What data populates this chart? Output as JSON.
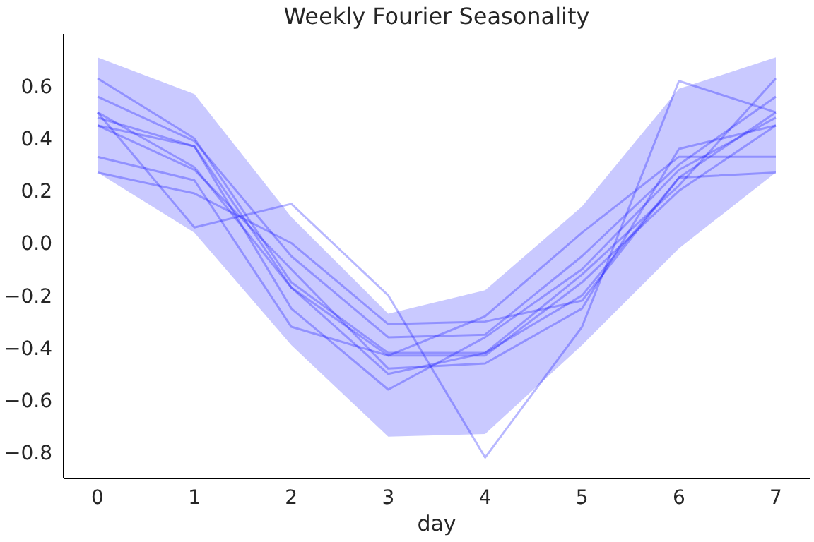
{
  "chart_data": {
    "type": "line",
    "title": "Weekly Fourier Seasonality",
    "xlabel": "day",
    "x": [
      0,
      1,
      2,
      3,
      4,
      5,
      6,
      7
    ],
    "series": [
      {
        "color": "#0000ff",
        "values": [
          0.63,
          0.4,
          -0.15,
          -0.42,
          -0.42,
          -0.12,
          0.22,
          0.63
        ],
        "lower": [
          0.27,
          0.04,
          -0.39,
          -0.74,
          -0.73,
          -0.39,
          -0.02,
          0.27
        ],
        "upper": [
          0.71,
          0.57,
          0.1,
          -0.27,
          -0.18,
          0.14,
          0.59,
          0.71
        ]
      },
      {
        "color": "#0000ff",
        "values": [
          0.56,
          0.39,
          -0.05,
          -0.36,
          -0.35,
          -0.05,
          0.3,
          0.56
        ]
      },
      {
        "color": "#0000ff",
        "values": [
          0.5,
          0.06,
          0.15,
          -0.2,
          -0.82,
          -0.32,
          0.62,
          0.5
        ]
      },
      {
        "color": "#0000ff",
        "values": [
          0.5,
          0.29,
          -0.17,
          -0.5,
          -0.42,
          -0.2,
          0.25,
          0.5
        ]
      },
      {
        "color": "#0000ff",
        "values": [
          0.48,
          0.37,
          -0.25,
          -0.56,
          -0.36,
          -0.1,
          0.28,
          0.48
        ]
      },
      {
        "color": "#0000ff",
        "values": [
          0.45,
          0.37,
          -0.17,
          -0.43,
          -0.43,
          -0.15,
          0.2,
          0.45
        ]
      },
      {
        "color": "#0000ff",
        "values": [
          0.45,
          0.28,
          -0.1,
          -0.48,
          -0.46,
          -0.25,
          0.36,
          0.45
        ]
      },
      {
        "color": "#0000ff",
        "values": [
          0.33,
          0.24,
          -0.32,
          -0.43,
          -0.28,
          0.04,
          0.33,
          0.33
        ]
      },
      {
        "color": "#0000ff",
        "values": [
          0.27,
          0.19,
          0.0,
          -0.31,
          -0.3,
          -0.22,
          0.25,
          0.27
        ]
      }
    ],
    "xlim": [
      -0.35,
      7.35
    ],
    "xticks": [
      0,
      1,
      2,
      3,
      4,
      5,
      6,
      7
    ],
    "ylim": [
      -0.9,
      0.8
    ],
    "yticks": [
      {
        "value": -0.8,
        "label": "−0.8"
      },
      {
        "value": -0.6,
        "label": "−0.6"
      },
      {
        "value": -0.4,
        "label": "−0.4"
      },
      {
        "value": -0.2,
        "label": "−0.2"
      },
      {
        "value": 0,
        "label": "0.0"
      },
      {
        "value": 0.2,
        "label": "0.2"
      },
      {
        "value": 0.4,
        "label": "0.4"
      },
      {
        "value": 0.6,
        "label": "0.6"
      }
    ],
    "grid": false,
    "legend": false,
    "marker": "none",
    "line_style": "solid"
  }
}
